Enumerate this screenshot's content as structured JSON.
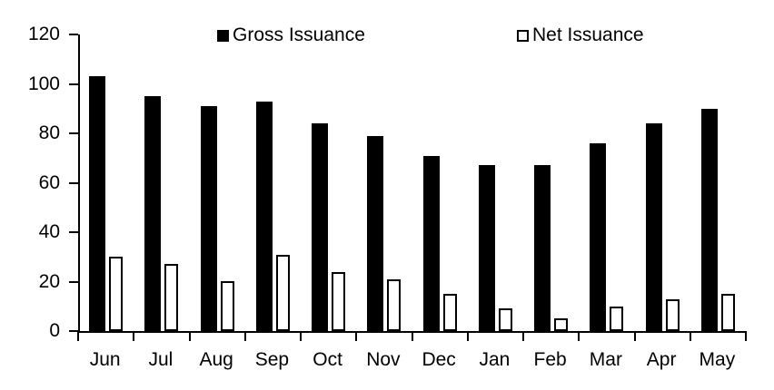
{
  "chart_data": {
    "type": "bar",
    "title": "",
    "xlabel": "",
    "ylabel": "",
    "categories": [
      "Jun",
      "Jul",
      "Aug",
      "Sep",
      "Oct",
      "Nov",
      "Dec",
      "Jan",
      "Feb",
      "Mar",
      "Apr",
      "May"
    ],
    "series": [
      {
        "name": "Gross Issuance",
        "style": "filled",
        "fill": "#000000",
        "values": [
          103,
          95,
          91,
          93,
          84,
          79,
          71,
          67,
          67,
          76,
          84,
          90
        ]
      },
      {
        "name": "Net Issuance",
        "style": "outlined",
        "fill": "#ffffff",
        "outline": "#000000",
        "values": [
          30,
          27,
          20,
          31,
          24,
          21,
          15,
          9,
          5,
          10,
          13,
          15
        ]
      }
    ],
    "ylim": [
      0,
      120
    ],
    "yticks": [
      0,
      20,
      40,
      60,
      80,
      100,
      120
    ],
    "grid": false,
    "legend_position": "top-center"
  },
  "colors": {
    "background": "#ffffff",
    "axis": "#000000",
    "text": "#000000",
    "gross_fill": "#000000",
    "net_fill": "#ffffff",
    "net_outline": "#000000"
  }
}
